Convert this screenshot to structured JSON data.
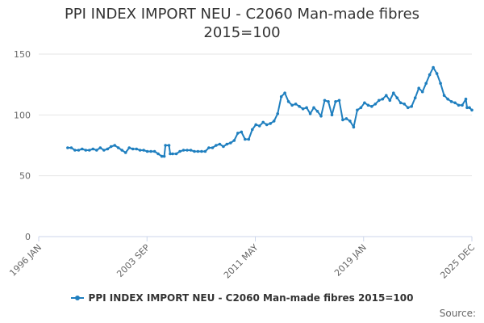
{
  "chart_data": {
    "type": "line",
    "title_lines": [
      "PPI INDEX IMPORT NEU - C2060 Man-made fibres",
      "2015=100"
    ],
    "xlabel": "",
    "ylabel": "",
    "x_ticks": [
      "1996 JAN",
      "2003 SEP",
      "2011 MAY",
      "2019 JAN",
      "2025 DEC"
    ],
    "x_range": [
      "1996-01",
      "2025-12"
    ],
    "y_ticks": [
      0,
      50,
      100,
      150
    ],
    "ylim": [
      0,
      150
    ],
    "grid": "horizontal",
    "legend_position": "bottom",
    "series": [
      {
        "name": "PPI INDEX IMPORT NEU - C2060 Man-made fibres 2015=100",
        "color": "#1f7fbf",
        "points": [
          [
            "1998-01",
            73
          ],
          [
            "1998-04",
            73
          ],
          [
            "1998-07",
            71
          ],
          [
            "1998-10",
            71
          ],
          [
            "1999-01",
            72
          ],
          [
            "1999-04",
            71
          ],
          [
            "1999-07",
            71
          ],
          [
            "1999-10",
            72
          ],
          [
            "2000-01",
            71
          ],
          [
            "2000-04",
            73
          ],
          [
            "2000-07",
            71
          ],
          [
            "2000-10",
            72
          ],
          [
            "2001-01",
            74
          ],
          [
            "2001-04",
            75
          ],
          [
            "2001-07",
            73
          ],
          [
            "2001-10",
            71
          ],
          [
            "2002-01",
            69
          ],
          [
            "2002-04",
            73
          ],
          [
            "2002-07",
            72
          ],
          [
            "2002-10",
            72
          ],
          [
            "2003-01",
            71
          ],
          [
            "2003-04",
            71
          ],
          [
            "2003-07",
            70
          ],
          [
            "2003-10",
            70
          ],
          [
            "2004-01",
            70
          ],
          [
            "2004-04",
            68
          ],
          [
            "2004-07",
            66
          ],
          [
            "2004-09",
            66
          ],
          [
            "2004-10",
            75
          ],
          [
            "2005-01",
            75
          ],
          [
            "2005-02",
            68
          ],
          [
            "2005-04",
            68
          ],
          [
            "2005-07",
            68
          ],
          [
            "2005-10",
            70
          ],
          [
            "2006-01",
            71
          ],
          [
            "2006-04",
            71
          ],
          [
            "2006-07",
            71
          ],
          [
            "2006-10",
            70
          ],
          [
            "2007-01",
            70
          ],
          [
            "2007-04",
            70
          ],
          [
            "2007-07",
            70
          ],
          [
            "2007-10",
            73
          ],
          [
            "2008-01",
            73
          ],
          [
            "2008-04",
            75
          ],
          [
            "2008-07",
            76
          ],
          [
            "2008-10",
            74
          ],
          [
            "2009-01",
            76
          ],
          [
            "2009-04",
            77
          ],
          [
            "2009-07",
            79
          ],
          [
            "2009-10",
            85
          ],
          [
            "2010-01",
            86
          ],
          [
            "2010-04",
            80
          ],
          [
            "2010-07",
            80
          ],
          [
            "2010-10",
            88
          ],
          [
            "2011-01",
            92
          ],
          [
            "2011-04",
            91
          ],
          [
            "2011-07",
            94
          ],
          [
            "2011-10",
            92
          ],
          [
            "2012-01",
            93
          ],
          [
            "2012-04",
            95
          ],
          [
            "2012-07",
            101
          ],
          [
            "2012-10",
            115
          ],
          [
            "2013-01",
            118
          ],
          [
            "2013-04",
            111
          ],
          [
            "2013-07",
            108
          ],
          [
            "2013-10",
            109
          ],
          [
            "2014-01",
            107
          ],
          [
            "2014-04",
            105
          ],
          [
            "2014-07",
            106
          ],
          [
            "2014-10",
            101
          ],
          [
            "2015-01",
            106
          ],
          [
            "2015-04",
            103
          ],
          [
            "2015-07",
            99
          ],
          [
            "2015-10",
            112
          ],
          [
            "2016-01",
            111
          ],
          [
            "2016-04",
            100
          ],
          [
            "2016-07",
            111
          ],
          [
            "2016-10",
            112
          ],
          [
            "2017-01",
            96
          ],
          [
            "2017-04",
            97
          ],
          [
            "2017-07",
            95
          ],
          [
            "2017-10",
            90
          ],
          [
            "2018-01",
            104
          ],
          [
            "2018-04",
            106
          ],
          [
            "2018-07",
            110
          ],
          [
            "2018-10",
            108
          ],
          [
            "2019-01",
            107
          ],
          [
            "2019-04",
            109
          ],
          [
            "2019-07",
            112
          ],
          [
            "2019-10",
            113
          ],
          [
            "2020-01",
            116
          ],
          [
            "2020-04",
            112
          ],
          [
            "2020-07",
            118
          ],
          [
            "2020-10",
            114
          ],
          [
            "2021-01",
            110
          ],
          [
            "2021-04",
            109
          ],
          [
            "2021-07",
            106
          ],
          [
            "2021-10",
            107
          ],
          [
            "2022-01",
            114
          ],
          [
            "2022-04",
            122
          ],
          [
            "2022-07",
            119
          ],
          [
            "2022-10",
            126
          ],
          [
            "2023-01",
            133
          ],
          [
            "2023-04",
            139
          ],
          [
            "2023-07",
            134
          ],
          [
            "2023-10",
            126
          ],
          [
            "2024-01",
            116
          ],
          [
            "2024-04",
            113
          ],
          [
            "2024-07",
            111
          ],
          [
            "2024-10",
            110
          ],
          [
            "2025-01",
            108
          ],
          [
            "2025-04",
            108
          ],
          [
            "2025-07",
            113
          ],
          [
            "2025-08",
            106
          ],
          [
            "2025-10",
            106
          ],
          [
            "2025-12",
            104
          ]
        ]
      }
    ]
  },
  "footer": {
    "source_label": "Source:"
  }
}
